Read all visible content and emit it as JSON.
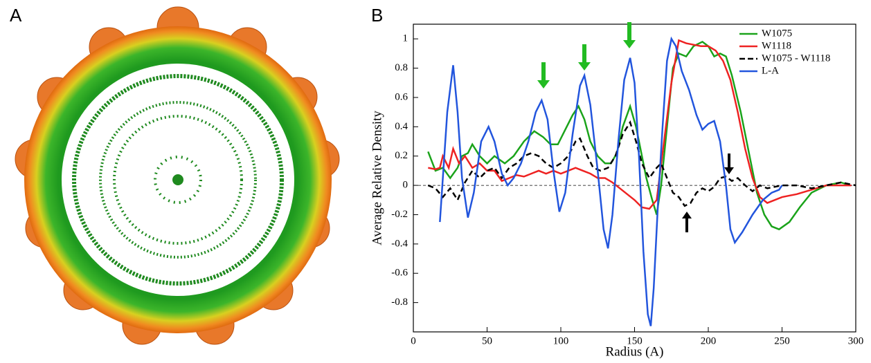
{
  "panel_labels": [
    "A",
    "B"
  ],
  "chart_data": {
    "type": "line",
    "xlabel": "Radius (A)",
    "ylabel": "Average Relative Density",
    "xlim": [
      0,
      300
    ],
    "ylim": [
      -1,
      1.1
    ],
    "xticks": [
      0,
      50,
      100,
      150,
      200,
      250,
      300
    ],
    "yticks": [
      -0.8,
      -0.6,
      -0.4,
      -0.2,
      0,
      0.2,
      0.4,
      0.6,
      0.8,
      1
    ],
    "legend": "upper right",
    "series": [
      {
        "name": "W1075",
        "color": "#1aa31a",
        "dashed": false,
        "x": [
          10,
          15,
          20,
          25,
          30,
          33,
          37,
          40,
          45,
          50,
          55,
          62,
          68,
          75,
          82,
          88,
          93,
          98,
          103,
          108,
          112,
          116,
          120,
          125,
          130,
          134,
          138,
          142,
          147,
          151,
          155,
          158,
          162,
          165,
          168,
          172,
          176,
          180,
          185,
          190,
          196,
          200,
          204,
          208,
          212,
          216,
          222,
          228,
          233,
          238,
          243,
          248,
          255,
          262,
          270,
          280,
          290,
          296
        ],
        "values": [
          0.23,
          0.1,
          0.12,
          0.05,
          0.12,
          0.2,
          0.22,
          0.28,
          0.2,
          0.15,
          0.2,
          0.15,
          0.2,
          0.3,
          0.37,
          0.33,
          0.28,
          0.28,
          0.38,
          0.48,
          0.54,
          0.45,
          0.3,
          0.2,
          0.15,
          0.15,
          0.22,
          0.4,
          0.54,
          0.4,
          0.2,
          0.05,
          -0.1,
          -0.2,
          0.0,
          0.4,
          0.8,
          0.9,
          0.88,
          0.95,
          0.98,
          0.95,
          0.88,
          0.9,
          0.88,
          0.75,
          0.5,
          0.2,
          -0.05,
          -0.2,
          -0.28,
          -0.3,
          -0.25,
          -0.15,
          -0.05,
          0.0,
          0.02,
          0.0
        ]
      },
      {
        "name": "W1118",
        "color": "#ee2222",
        "dashed": false,
        "x": [
          10,
          15,
          18,
          20,
          24,
          27,
          31,
          35,
          40,
          45,
          50,
          55,
          60,
          65,
          70,
          75,
          80,
          85,
          90,
          95,
          100,
          105,
          110,
          115,
          120,
          125,
          130,
          135,
          140,
          145,
          150,
          155,
          160,
          165,
          170,
          175,
          180,
          185,
          190,
          195,
          200,
          205,
          210,
          215,
          220,
          225,
          230,
          235,
          240,
          245,
          250,
          260,
          270,
          280,
          290,
          297
        ],
        "values": [
          0.12,
          0.11,
          0.12,
          0.2,
          0.12,
          0.25,
          0.15,
          0.2,
          0.12,
          0.15,
          0.1,
          0.1,
          0.03,
          0.05,
          0.07,
          0.06,
          0.08,
          0.1,
          0.08,
          0.1,
          0.08,
          0.1,
          0.12,
          0.1,
          0.08,
          0.05,
          0.05,
          0.02,
          -0.02,
          -0.06,
          -0.1,
          -0.15,
          -0.16,
          -0.1,
          0.3,
          0.7,
          0.99,
          0.97,
          0.96,
          0.95,
          0.95,
          0.92,
          0.85,
          0.72,
          0.5,
          0.25,
          0.05,
          -0.08,
          -0.12,
          -0.1,
          -0.08,
          -0.06,
          -0.03,
          0.0,
          0.0,
          0.0
        ]
      },
      {
        "name": "W1075 - W1118",
        "color": "#000000",
        "dashed": true,
        "x": [
          10,
          15,
          20,
          25,
          30,
          35,
          40,
          45,
          50,
          55,
          60,
          65,
          70,
          75,
          80,
          85,
          90,
          95,
          100,
          105,
          110,
          113,
          118,
          122,
          127,
          132,
          137,
          142,
          147,
          151,
          155,
          160,
          165,
          168,
          172,
          176,
          180,
          184,
          188,
          192,
          196,
          200,
          204,
          208,
          212,
          216,
          220,
          225,
          230,
          235,
          240,
          250,
          260,
          270,
          280,
          290,
          300
        ],
        "values": [
          0.0,
          -0.02,
          -0.08,
          -0.02,
          -0.1,
          0.02,
          0.1,
          0.05,
          0.1,
          0.12,
          0.05,
          0.12,
          0.15,
          0.2,
          0.22,
          0.2,
          0.15,
          0.12,
          0.15,
          0.2,
          0.3,
          0.32,
          0.2,
          0.12,
          0.1,
          0.12,
          0.2,
          0.35,
          0.43,
          0.3,
          0.15,
          0.05,
          0.12,
          0.15,
          0.05,
          -0.05,
          -0.08,
          -0.14,
          -0.12,
          -0.05,
          -0.02,
          -0.04,
          -0.01,
          0.05,
          0.06,
          0.03,
          0.05,
          0.0,
          -0.04,
          0.0,
          -0.02,
          0.0,
          0.0,
          -0.02,
          0.0,
          0.02,
          0.0
        ]
      },
      {
        "name": "L-A",
        "color": "#2255dd",
        "dashed": false,
        "x": [
          18,
          20,
          23,
          27,
          30,
          33,
          37,
          41,
          46,
          51,
          55,
          60,
          64,
          68,
          73,
          78,
          83,
          87,
          91,
          95,
          99,
          103,
          108,
          113,
          116,
          120,
          125,
          129,
          132,
          135,
          139,
          143,
          147,
          150,
          153,
          156,
          159,
          161,
          163,
          166,
          169,
          172,
          175,
          178,
          182,
          187,
          192,
          196,
          200,
          204,
          208,
          212,
          215,
          218,
          223,
          230,
          237,
          243,
          248,
          250
        ],
        "values": [
          -0.25,
          0.05,
          0.5,
          0.82,
          0.5,
          0.05,
          -0.22,
          -0.05,
          0.3,
          0.4,
          0.3,
          0.08,
          0.0,
          0.05,
          0.15,
          0.3,
          0.5,
          0.58,
          0.45,
          0.1,
          -0.18,
          -0.05,
          0.35,
          0.68,
          0.75,
          0.55,
          0.1,
          -0.3,
          -0.43,
          -0.2,
          0.3,
          0.72,
          0.87,
          0.7,
          0.2,
          -0.45,
          -0.88,
          -0.96,
          -0.7,
          -0.1,
          0.4,
          0.85,
          1.0,
          0.95,
          0.78,
          0.65,
          0.48,
          0.38,
          0.42,
          0.44,
          0.3,
          0.0,
          -0.3,
          -0.39,
          -0.32,
          -0.2,
          -0.1,
          -0.05,
          -0.03,
          0
        ]
      }
    ]
  }
}
